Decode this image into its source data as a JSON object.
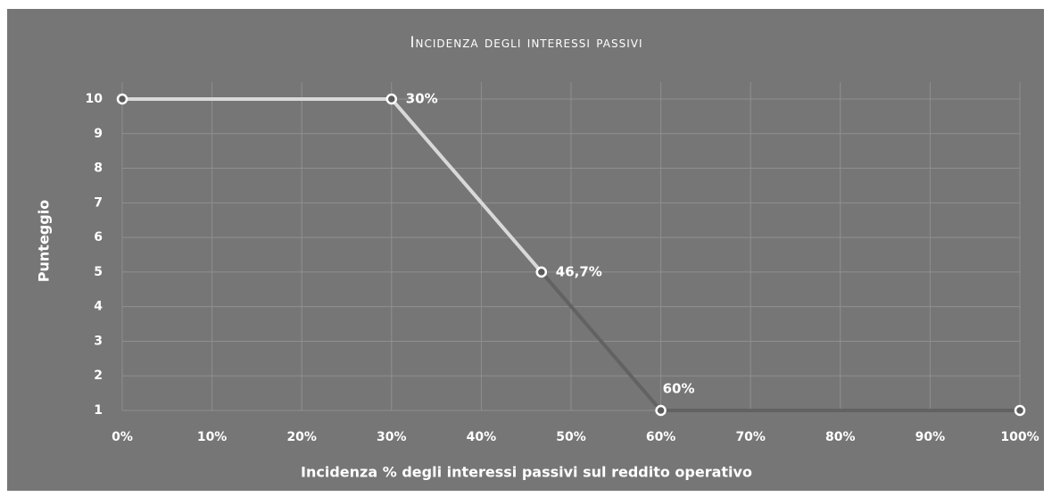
{
  "chart_data": {
    "type": "line",
    "title": "Incidenza degli interessi passivi",
    "x_label": "Incidenza % degli interessi passivi sul reddito operativo",
    "y_label": "Punteggio",
    "series": [
      {
        "color": "#d9d9d9",
        "x": [
          0,
          30,
          46.7
        ],
        "values": [
          10,
          10,
          5
        ],
        "x_labels": [
          null,
          "30%",
          "46,7%"
        ]
      },
      {
        "color": "#626262",
        "x": [
          46.7,
          60,
          100
        ],
        "values": [
          5,
          1,
          1
        ],
        "x_labels": [
          null,
          "60%",
          null
        ]
      }
    ],
    "xlim": [
      0,
      100
    ],
    "xticks": [
      {
        "value": 0,
        "label": "0%"
      },
      {
        "value": 10,
        "label": "10%"
      },
      {
        "value": 20,
        "label": "20%"
      },
      {
        "value": 30,
        "label": "30%"
      },
      {
        "value": 40,
        "label": "40%"
      },
      {
        "value": 50,
        "label": "50%"
      },
      {
        "value": 60,
        "label": "60%"
      },
      {
        "value": 70,
        "label": "70%"
      },
      {
        "value": 80,
        "label": "80%"
      },
      {
        "value": 90,
        "label": "90%"
      },
      {
        "value": 100,
        "label": "100%"
      }
    ],
    "ylim": [
      1,
      10
    ],
    "yticks": [
      1,
      2,
      3,
      4,
      5,
      6,
      7,
      8,
      9,
      10
    ],
    "grid": true
  }
}
